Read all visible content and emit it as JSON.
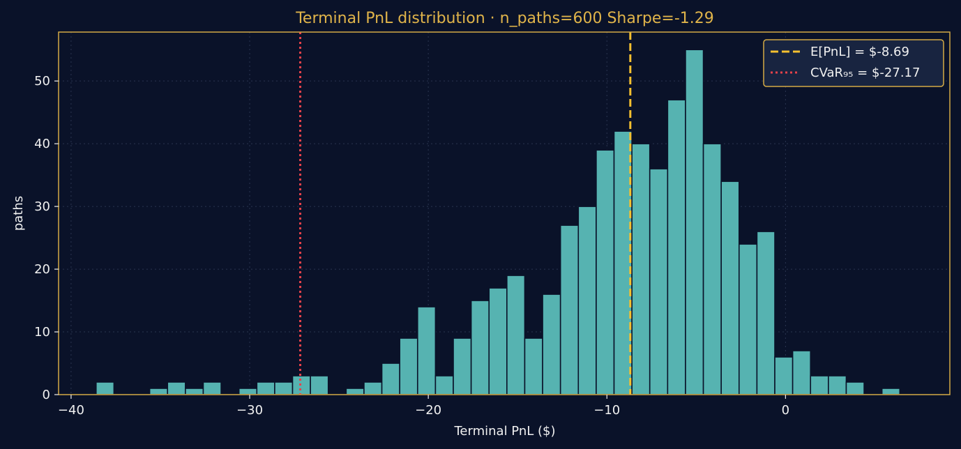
{
  "chart_data": {
    "type": "bar",
    "title": "Terminal PnL distribution · n_paths=600  Sharpe=-1.29",
    "xlabel": "Terminal PnL ($)",
    "ylabel": "paths",
    "xlim": [
      -40.7,
      9.2
    ],
    "ylim": [
      0,
      57.8
    ],
    "xticks": [
      -40,
      -30,
      -20,
      -10,
      0
    ],
    "xtick_labels": [
      "−40",
      "−30",
      "−20",
      "−10",
      "0"
    ],
    "yticks": [
      0,
      10,
      20,
      30,
      40,
      50
    ],
    "ytick_labels": [
      "0",
      "10",
      "20",
      "30",
      "40",
      "50"
    ],
    "grid": true,
    "bin_start": -38.6,
    "bin_width": 1.0,
    "counts": [
      2,
      0,
      0,
      1,
      2,
      1,
      2,
      0,
      1,
      2,
      2,
      3,
      3,
      0,
      1,
      2,
      5,
      9,
      14,
      3,
      9,
      15,
      17,
      19,
      9,
      16,
      27,
      30,
      39,
      42,
      40,
      36,
      47,
      55,
      40,
      34,
      24,
      26,
      6,
      7,
      3,
      3,
      2,
      0,
      1
    ],
    "vlines": [
      {
        "x": -8.69,
        "label": "E[PnL] = $-8.69",
        "style": "dashed",
        "color": "#f5c030"
      },
      {
        "x": -27.17,
        "label": "CVaR₉₅ = $-27.17",
        "style": "dotted",
        "color": "#e8424a"
      }
    ],
    "legend": "top-right",
    "colors": {
      "background": "#0a1229",
      "bar": "#56b3b1",
      "bar_edge": "#0a1229",
      "spine": "#d4aa45",
      "title": "#e0b44a",
      "grid": "#2a3550",
      "legend_bg": "#182440",
      "legend_edge": "#d4aa45"
    }
  }
}
